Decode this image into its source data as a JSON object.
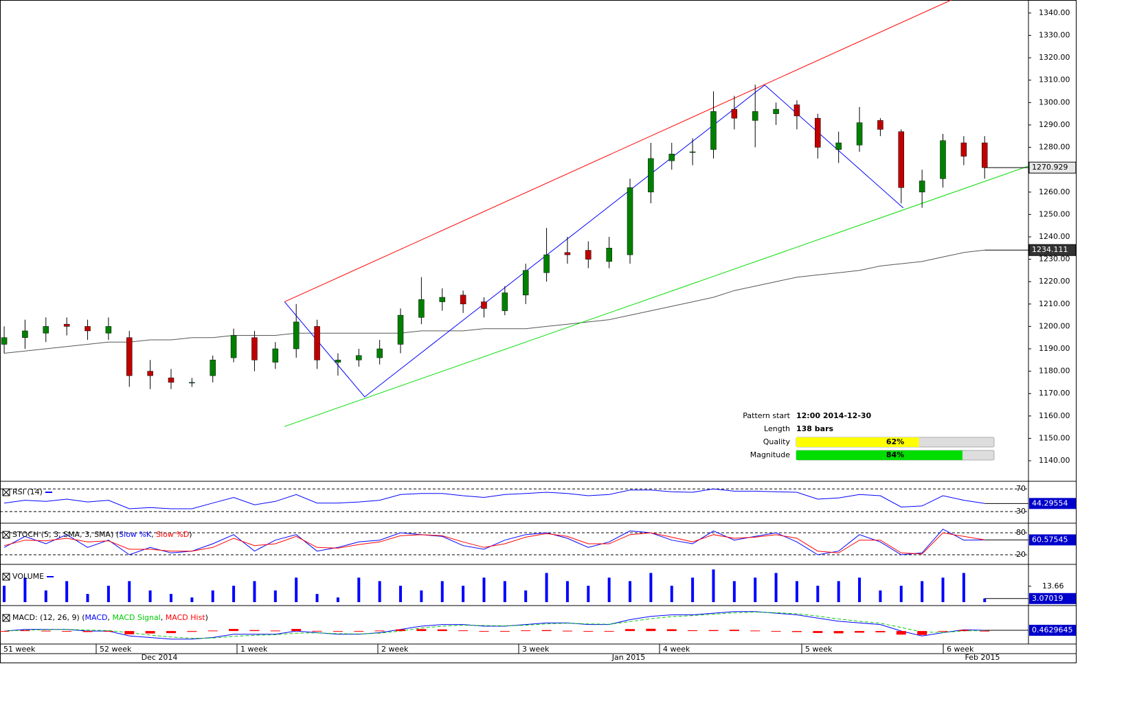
{
  "chart_data": [
    {
      "type": "candlestick",
      "name": "price",
      "xlim": [
        -0.2,
        49.1
      ],
      "ylim": [
        1134.5,
        1345.8
      ],
      "yticks": [
        {
          "value": 1140,
          "label": "1140.00"
        },
        {
          "value": 1150,
          "label": "1150.00"
        },
        {
          "value": 1160,
          "label": "1160.00"
        },
        {
          "value": 1170,
          "label": "1170.00"
        },
        {
          "value": 1180,
          "label": "1180.00"
        },
        {
          "value": 1190,
          "label": "1190.00"
        },
        {
          "value": 1200,
          "label": "1200.00"
        },
        {
          "value": 1210,
          "label": "1210.00"
        },
        {
          "value": 1220,
          "label": "1220.00"
        },
        {
          "value": 1230,
          "label": "1230.00"
        },
        {
          "value": 1240,
          "label": "1240.00"
        },
        {
          "value": 1250,
          "label": "1250.00"
        },
        {
          "value": 1260,
          "label": "1260.00"
        },
        {
          "value": 1270,
          "label": "1270.00"
        },
        {
          "value": 1280,
          "label": "1280.00"
        },
        {
          "value": 1290,
          "label": "1290.00"
        },
        {
          "value": 1300,
          "label": "1300.00"
        },
        {
          "value": 1310,
          "label": "1310.00"
        },
        {
          "value": 1320,
          "label": "1320.00"
        },
        {
          "value": 1330,
          "label": "1330.00"
        },
        {
          "value": 1340,
          "label": "1340.00"
        }
      ],
      "open": [
        1192,
        1195,
        1197,
        1201,
        1200,
        1197,
        1195,
        1180,
        1177,
        1175,
        1178,
        1186,
        1195,
        1184,
        1190,
        1200,
        1184,
        1185,
        1186,
        1192,
        1204,
        1211,
        1214,
        1211,
        1207,
        1214,
        1224,
        1233,
        1234,
        1229,
        1232,
        1260,
        1274,
        1278,
        1279,
        1297,
        1292,
        1295,
        1299,
        1293,
        1279,
        1281,
        1292,
        1287,
        1260,
        1266,
        1282,
        1282
      ],
      "high": [
        1200,
        1203,
        1204,
        1204,
        1203,
        1204,
        1198,
        1185,
        1181,
        1177,
        1187,
        1199,
        1198,
        1193,
        1210,
        1203,
        1188,
        1190,
        1194,
        1208,
        1222,
        1217,
        1216,
        1213,
        1218,
        1228,
        1244,
        1240,
        1238,
        1240,
        1266,
        1282,
        1282,
        1284,
        1305,
        1303,
        1308,
        1300,
        1301,
        1295,
        1287,
        1298,
        1293,
        1288,
        1270,
        1286,
        1285,
        1285
      ],
      "low": [
        1188,
        1190,
        1193,
        1196,
        1194,
        1194,
        1173,
        1172,
        1172,
        1173,
        1175,
        1184,
        1180,
        1181,
        1186,
        1181,
        1178,
        1182,
        1183,
        1188,
        1201,
        1207,
        1206,
        1204,
        1205,
        1210,
        1220,
        1228,
        1226,
        1226,
        1228,
        1255,
        1270,
        1272,
        1275,
        1288,
        1280,
        1290,
        1288,
        1275,
        1273,
        1278,
        1285,
        1255,
        1253,
        1262,
        1272,
        1266
      ],
      "close": [
        1195,
        1198,
        1200,
        1200,
        1198,
        1200,
        1178,
        1178,
        1175,
        1175,
        1185,
        1196,
        1185,
        1190,
        1202,
        1185,
        1185,
        1187,
        1190,
        1205,
        1212,
        1213,
        1210,
        1208,
        1215,
        1225,
        1232,
        1232,
        1230,
        1235,
        1262,
        1275,
        1277,
        1278,
        1296,
        1293,
        1296,
        1297,
        1294,
        1280,
        1282,
        1291,
        1288,
        1262,
        1265,
        1283,
        1276,
        1270.929
      ],
      "up_color": "#008000",
      "down_color": "#c00000",
      "moving_average": {
        "color": "#555555",
        "values": [
          1188,
          1189,
          1190,
          1191,
          1192,
          1193,
          1193,
          1194,
          1194,
          1195,
          1195,
          1196,
          1196,
          1196,
          1197,
          1197,
          1197,
          1197,
          1197,
          1197,
          1198,
          1198,
          1198,
          1199,
          1199,
          1199,
          1200,
          1201,
          1202,
          1203,
          1205,
          1207,
          1209,
          1211,
          1213,
          1216,
          1218,
          1220,
          1222,
          1223,
          1224,
          1225,
          1227,
          1228,
          1229,
          1231,
          1233,
          1234.111
        ]
      },
      "pattern_lines": [
        {
          "color": "#ff0000",
          "x": [
            13.44,
            45.4
          ],
          "y": [
            1211,
            1345.8
          ]
        },
        {
          "color": "#00dd00",
          "x": [
            13.44,
            49.1
          ],
          "y": [
            1155.3,
            1271.6
          ]
        },
        {
          "color": "#0000ff",
          "x": [
            13.44,
            17.28,
            36.46,
            43.1
          ],
          "y": [
            1211,
            1168.5,
            1307.8,
            1252.9
          ]
        }
      ],
      "pattern": {
        "start_label": "Pattern start",
        "start": "12:00 2014-12-30",
        "length_label": "Length",
        "length": "138 bars",
        "xlim": [
          0,
          100
        ],
        "bars": [
          {
            "name": "Quality",
            "value": 62,
            "value_label": "62%",
            "color": "#ffff00"
          },
          {
            "name": "Magnitude",
            "value": 84,
            "value_label": "84%",
            "color": "#00dd00"
          }
        ]
      },
      "xlabels": [
        "51 week",
        "52 week",
        "1 week",
        "2 week",
        "3 week",
        "4 week",
        "5 week",
        "6 week"
      ],
      "xlabels2": [
        "Dec 2014",
        "Jan 2015",
        "Feb 2015"
      ]
    },
    {
      "type": "line",
      "title": "RSI (14)",
      "ylim": [
        12,
        81
      ],
      "yticks": [
        70,
        30
      ],
      "series": [
        {
          "name": "RSI",
          "color": "#0000ff",
          "values": [
            45,
            50,
            48,
            52,
            47,
            50,
            35,
            37,
            35,
            35,
            45,
            55,
            42,
            48,
            60,
            45,
            45,
            47,
            50,
            60,
            62,
            62,
            58,
            55,
            60,
            62,
            64,
            62,
            58,
            60,
            68,
            68,
            65,
            64,
            70,
            66,
            66,
            65,
            64,
            52,
            54,
            60,
            58,
            38,
            40,
            58,
            50,
            44.29554
          ]
        }
      ]
    },
    {
      "type": "line",
      "title": "STOCH (5, 3, SMA, 3, SMA)",
      "ylim": [
        -2.5,
        100.6
      ],
      "yticks": [
        80,
        20
      ],
      "series": [
        {
          "name": "Slow %K",
          "color": "#0000ff",
          "values": [
            40,
            70,
            50,
            75,
            40,
            60,
            20,
            40,
            25,
            30,
            50,
            75,
            30,
            60,
            75,
            30,
            40,
            55,
            60,
            80,
            75,
            70,
            45,
            35,
            60,
            75,
            80,
            65,
            40,
            55,
            85,
            80,
            60,
            50,
            85,
            60,
            70,
            80,
            55,
            20,
            30,
            75,
            55,
            20,
            25,
            90,
            60,
            60.57545
          ]
        },
        {
          "name": "Slow %D",
          "color": "#ff0000",
          "values": [
            45,
            60,
            58,
            65,
            55,
            58,
            35,
            35,
            30,
            30,
            40,
            65,
            45,
            50,
            70,
            40,
            38,
            48,
            55,
            72,
            75,
            72,
            55,
            40,
            50,
            68,
            78,
            70,
            50,
            50,
            75,
            80,
            68,
            55,
            75,
            65,
            68,
            75,
            65,
            30,
            25,
            60,
            60,
            25,
            22,
            80,
            70,
            60.6
          ]
        }
      ]
    },
    {
      "type": "bar",
      "title": "VOLUME",
      "ylim": [
        0,
        30
      ],
      "yticks": [
        13.66
      ],
      "series": [
        {
          "name": "Volume",
          "color": "#0000ff",
          "values": [
            14,
            21,
            10,
            18,
            7,
            14,
            18,
            10,
            7,
            4,
            10,
            14,
            18,
            10,
            21,
            7,
            4,
            21,
            18,
            14,
            10,
            18,
            14,
            21,
            18,
            10,
            25,
            18,
            14,
            21,
            18,
            25,
            14,
            21,
            28,
            18,
            21,
            25,
            18,
            14,
            18,
            21,
            10,
            14,
            18,
            21,
            25,
            3.07019
          ]
        }
      ]
    },
    {
      "type": "line",
      "title": "MACD: (12, 26, 9)",
      "ylim": [
        -8,
        14
      ],
      "series": [
        {
          "name": "MACD",
          "color": "#0000ff",
          "values": [
            0,
            1,
            1,
            1,
            0,
            0,
            -3,
            -4,
            -5,
            -5,
            -4,
            -2,
            -2,
            -2,
            0,
            -1,
            -2,
            -2,
            -1,
            1,
            3,
            4,
            4,
            3,
            3,
            4,
            5,
            5,
            4,
            4,
            7,
            9,
            10,
            10,
            11,
            12,
            12,
            11,
            10,
            8,
            6,
            5,
            4,
            0,
            -3,
            -1,
            0.8,
            0.4629645
          ]
        },
        {
          "name": "MACD Signal",
          "color": "#00cc00",
          "values": [
            0,
            0.5,
            0.8,
            1,
            0.6,
            0.3,
            -1,
            -2.5,
            -3.7,
            -4.5,
            -4.3,
            -3.3,
            -2.6,
            -2.3,
            -1.3,
            -1.1,
            -1.6,
            -1.8,
            -1.3,
            0,
            1.8,
            3,
            3.6,
            3.4,
            3.2,
            3.6,
            4.4,
            4.8,
            4.4,
            4.2,
            5.8,
            7.6,
            8.9,
            9.5,
            10.4,
            11.2,
            11.7,
            11.3,
            10.6,
            9.2,
            7.4,
            6,
            4.8,
            2.2,
            -0.6,
            -0.9,
            0.1,
            0.3
          ]
        },
        {
          "name": "MACD Hist",
          "color": "#ff0000",
          "values": [
            0,
            0.5,
            0.2,
            0,
            -0.6,
            -0.3,
            -2,
            -1.5,
            -1.3,
            -0.5,
            0.3,
            1.3,
            0.6,
            0.3,
            1.3,
            0.1,
            -0.4,
            -0.2,
            0.3,
            1,
            1.2,
            1,
            0.4,
            -0.4,
            -0.2,
            0.4,
            0.6,
            0.2,
            -0.4,
            -0.2,
            1.2,
            1.4,
            1.1,
            0.5,
            0.6,
            0.8,
            0.3,
            -0.3,
            -0.6,
            -1.2,
            -1.4,
            -1,
            -0.8,
            -2.2,
            -2.4,
            -0.1,
            0.7,
            0.16
          ]
        }
      ]
    }
  ]
}
